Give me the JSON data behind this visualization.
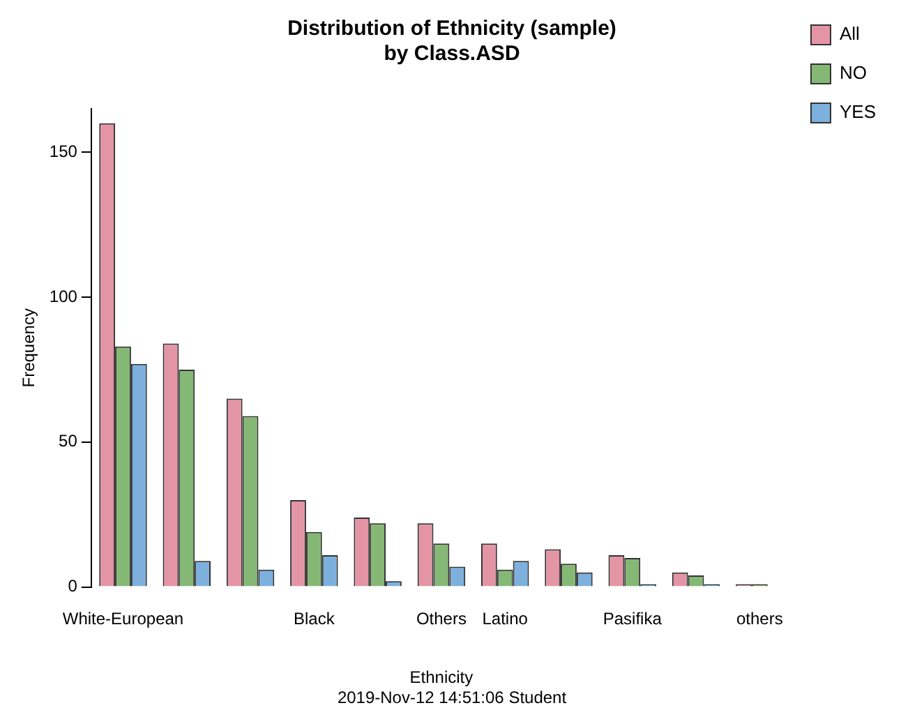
{
  "chart_data": {
    "type": "bar",
    "title": "Distribution of Ethnicity (sample)\nby Class.ASD",
    "xlabel": "Ethnicity",
    "ylabel": "Frequency",
    "annotations": [
      "2019-Nov-12 14:51:06 Student"
    ],
    "categories": [
      "White-European",
      null,
      null,
      "Black",
      null,
      "Others",
      "Latino",
      null,
      "Pasifika",
      null,
      "others"
    ],
    "series": [
      {
        "name": "All",
        "color": "#e495a5",
        "values": [
          160,
          84,
          65,
          30,
          24,
          22,
          15,
          13,
          11,
          5,
          1
        ]
      },
      {
        "name": "NO",
        "color": "#86b875",
        "values": [
          83,
          75,
          59,
          19,
          22,
          15,
          6,
          8,
          10,
          4,
          1
        ]
      },
      {
        "name": "YES",
        "color": "#7db0dd",
        "values": [
          77,
          9,
          6,
          11,
          2,
          7,
          9,
          5,
          1,
          1,
          0
        ]
      }
    ],
    "ylim": [
      0,
      165
    ],
    "yticks": [
      0,
      50,
      100,
      150
    ],
    "grid": false,
    "legend": "top right"
  }
}
